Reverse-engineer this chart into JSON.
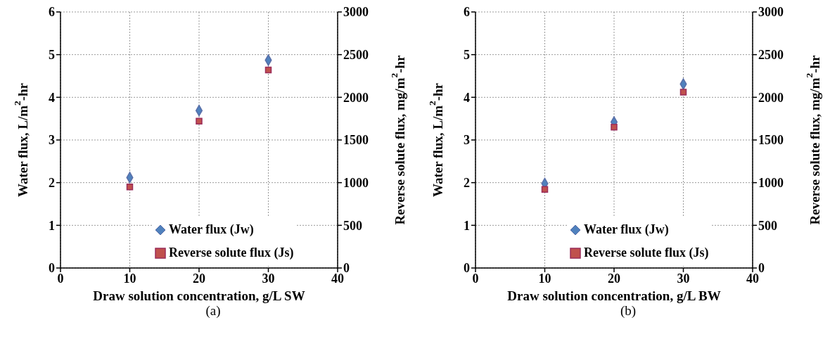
{
  "chart_data": [
    {
      "type": "scatter",
      "xlabel": "Draw solution concentration, g/L SW",
      "ylabel": "Water flux, L/m$^{2}$-hr",
      "y2label": "Reverse solute flux, mg/m$^{2}$-hr",
      "annotations": [
        "(a)"
      ],
      "x": [
        10,
        20,
        30
      ],
      "series": [
        {
          "name": "Water flux (Jw)",
          "color": "#4f81bd",
          "marker": "diamond",
          "values": [
            2.12,
            3.69,
            4.87
          ]
        },
        {
          "name": "Reverse solute flux (Js)",
          "color": "#c0504d",
          "marker": "square",
          "axis": "y2",
          "values": [
            950,
            1720,
            2320
          ]
        }
      ],
      "xlim": [
        0,
        40
      ],
      "xticks": [
        0,
        10,
        20,
        30,
        40
      ],
      "ylim": [
        0,
        6
      ],
      "yticks": [
        0,
        1,
        2,
        3,
        4,
        5,
        6
      ],
      "y2lim": [
        0,
        3000
      ],
      "y2ticks": [
        0,
        500,
        1000,
        1500,
        2000,
        2500,
        3000
      ],
      "grid": true,
      "legend": "bottom right"
    },
    {
      "type": "scatter",
      "xlabel": "Draw solution concentration, g/L BW",
      "ylabel": "Water flux, L/m$^{2}$-hr",
      "y2label": "Reverse solute flux, mg/m$^{2}$-hr",
      "annotations": [
        "(b)"
      ],
      "x": [
        10,
        20,
        30
      ],
      "series": [
        {
          "name": "Water flux (Jw)",
          "color": "#4f81bd",
          "marker": "diamond",
          "values": [
            1.98,
            3.42,
            4.31
          ]
        },
        {
          "name": "Reverse solute flux (Js)",
          "color": "#c0504d",
          "marker": "square",
          "axis": "y2",
          "values": [
            920,
            1650,
            2060
          ]
        }
      ],
      "xlim": [
        0,
        40
      ],
      "xticks": [
        0,
        10,
        20,
        30,
        40
      ],
      "ylim": [
        0,
        6
      ],
      "yticks": [
        0,
        1,
        2,
        3,
        4,
        5,
        6
      ],
      "y2lim": [
        0,
        3000
      ],
      "y2ticks": [
        0,
        500,
        1000,
        1500,
        2000,
        2500,
        3000
      ],
      "grid": true,
      "legend": "bottom right"
    }
  ]
}
